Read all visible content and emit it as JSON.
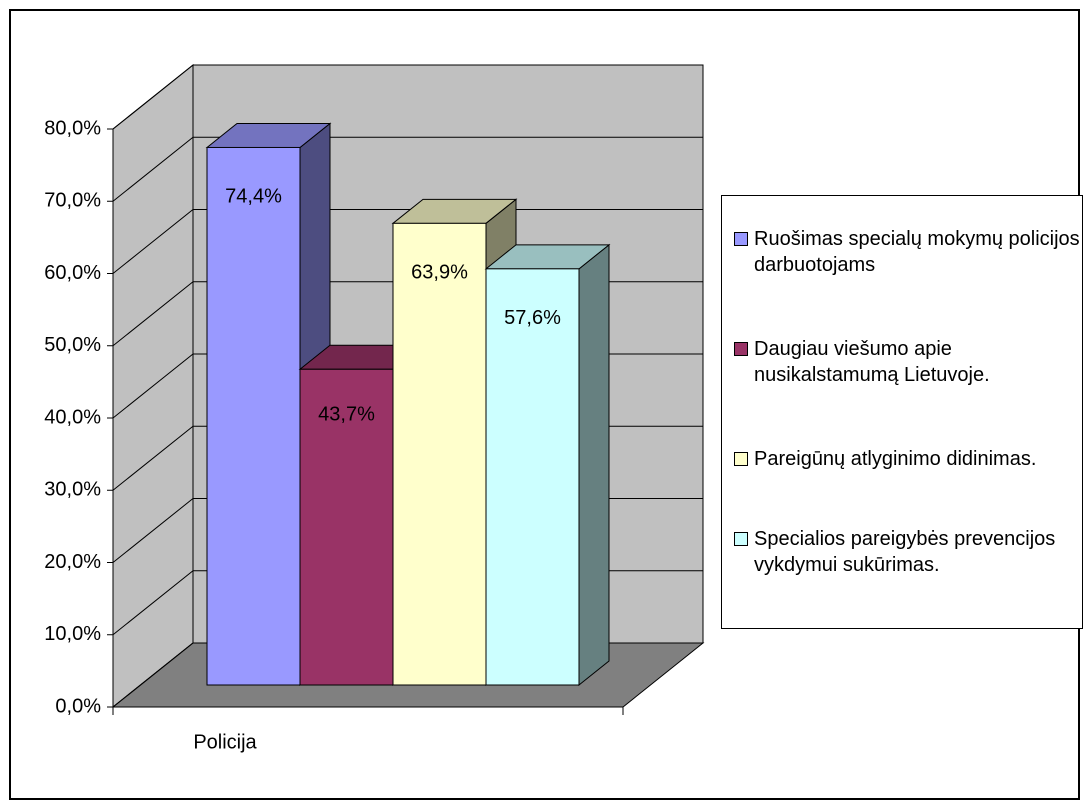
{
  "chart_data": {
    "type": "bar3d",
    "categories": [
      "Policija"
    ],
    "series": [
      {
        "name": "Ruošimas specialų mokymų policijos darbuotojams",
        "color": "#9999ff",
        "values": [
          74.4
        ],
        "value_labels": [
          "74,4%"
        ]
      },
      {
        "name": "Daugiau viešumo apie nusikalstamumą Lietuvoje.",
        "color": "#993366",
        "values": [
          43.7
        ],
        "value_labels": [
          "43,7%"
        ]
      },
      {
        "name": "Pareigūnų atlyginimo didinimas.",
        "color": "#ffffcc",
        "values": [
          63.9
        ],
        "value_labels": [
          "63,9%"
        ]
      },
      {
        "name": "Specialios pareigybės prevencijos vykdymui sukūrimas.",
        "color": "#ccffff",
        "values": [
          57.6
        ],
        "value_labels": [
          "57,6%"
        ]
      }
    ],
    "ylim": [
      0,
      80
    ],
    "yticks": [
      {
        "value": 0,
        "label": "0,0%"
      },
      {
        "value": 10,
        "label": "10,0%"
      },
      {
        "value": 20,
        "label": "20,0%"
      },
      {
        "value": 30,
        "label": "30,0%"
      },
      {
        "value": 40,
        "label": "40,0%"
      },
      {
        "value": 50,
        "label": "50,0%"
      },
      {
        "value": 60,
        "label": "60,0%"
      },
      {
        "value": 70,
        "label": "70,0%"
      },
      {
        "value": 80,
        "label": "80,0%"
      }
    ],
    "grid": true,
    "legend": "right"
  }
}
